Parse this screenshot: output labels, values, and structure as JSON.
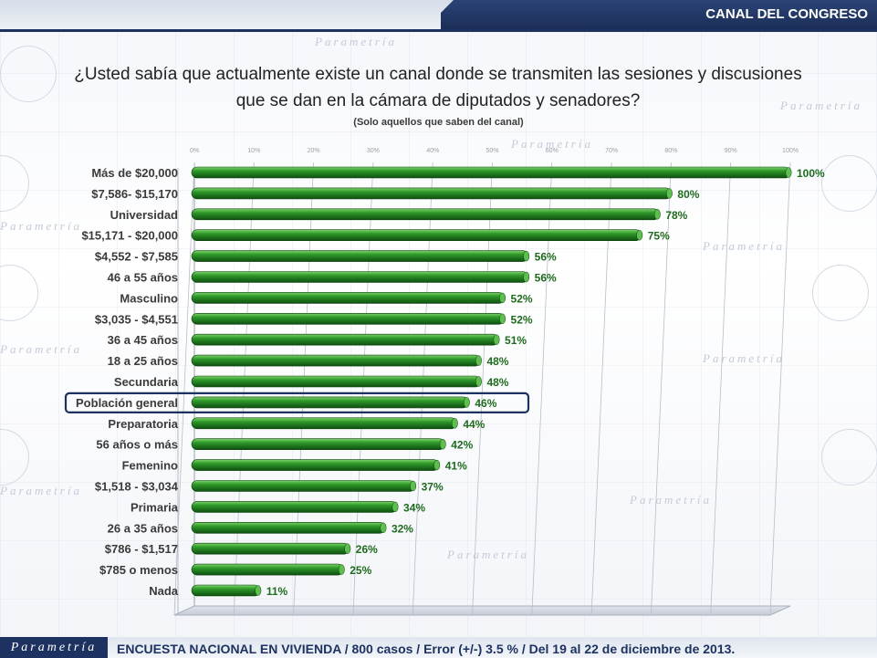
{
  "header": {
    "section": "CANAL DEL CONGRESO"
  },
  "question": {
    "line1": "¿Usted sabía que actualmente existe un canal donde se transmiten las sesiones y discusiones",
    "line2": "que se dan en la cámara de diputados y senadores?",
    "note": "(Solo aquellos que saben del canal)"
  },
  "chart_data": {
    "type": "bar",
    "orientation": "horizontal",
    "categories": [
      "Más de $20,000",
      "$7,586- $15,170",
      "Universidad",
      "$15,171 - $20,000",
      "$4,552 - $7,585",
      "46 a 55 años",
      "Masculino",
      "$3,035 - $4,551",
      "36 a 45 años",
      "18 a 25 años",
      "Secundaria",
      "Población general",
      "Preparatoria",
      "56 años o más",
      "Femenino",
      "$1,518 - $3,034",
      "Primaria",
      "26 a 35 años",
      "$786 - $1,517",
      "$785 o menos",
      "Nada"
    ],
    "values": [
      100,
      80,
      78,
      75,
      56,
      56,
      52,
      52,
      51,
      48,
      48,
      46,
      44,
      42,
      41,
      37,
      34,
      32,
      26,
      25,
      11
    ],
    "value_labels": [
      "100%",
      "80%",
      "78%",
      "75%",
      "56%",
      "56%",
      "52%",
      "52%",
      "51%",
      "48%",
      "48%",
      "46%",
      "44%",
      "42%",
      "41%",
      "37%",
      "34%",
      "32%",
      "26%",
      "25%",
      "11%"
    ],
    "ticks": [
      "0%",
      "10%",
      "20%",
      "30%",
      "40%",
      "50%",
      "60%",
      "70%",
      "80%",
      "90%",
      "100%"
    ],
    "xlim": [
      0,
      100
    ],
    "highlighted_category": "Población general",
    "bar_color": "#1f7a1f",
    "label_color": "#1e6b1e",
    "grid": true
  },
  "footer": {
    "logo": "Parametría",
    "source": "ENCUESTA NACIONAL EN VIVIENDA / 800 casos / Error (+/-) 3.5 % / Del 19 al 22 de diciembre de 2013."
  }
}
